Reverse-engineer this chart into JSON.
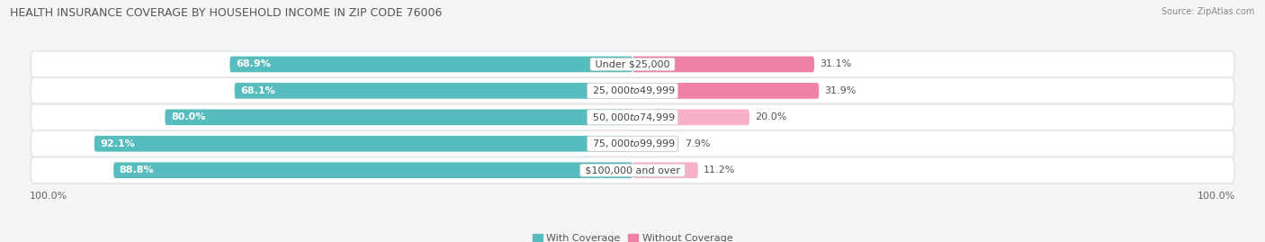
{
  "title": "HEALTH INSURANCE COVERAGE BY HOUSEHOLD INCOME IN ZIP CODE 76006",
  "source": "Source: ZipAtlas.com",
  "categories": [
    "Under $25,000",
    "$25,000 to $49,999",
    "$50,000 to $74,999",
    "$75,000 to $99,999",
    "$100,000 and over"
  ],
  "with_coverage": [
    68.9,
    68.1,
    80.0,
    92.1,
    88.8
  ],
  "without_coverage": [
    31.1,
    31.9,
    20.0,
    7.9,
    11.2
  ],
  "color_with": "#57bcbe",
  "color_without": "#f080a8",
  "color_without_light": "#f8b0c8",
  "bar_height": 0.58,
  "row_bg": "#e8e8ec",
  "fig_bg": "#f5f5f7",
  "legend_with": "With Coverage",
  "legend_without": "Without Coverage",
  "title_fontsize": 9,
  "label_fontsize": 8,
  "tick_fontsize": 8,
  "source_fontsize": 7
}
